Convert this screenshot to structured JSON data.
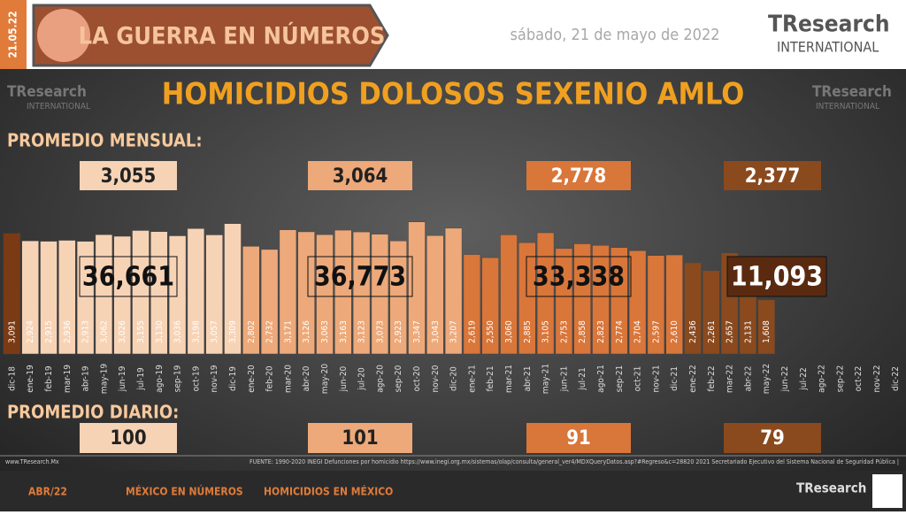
{
  "header": {
    "date_stamp": "21.05.22",
    "section": "LA GUERRA EN NÚMEROS",
    "date": "sábado, 21 de mayo de 2022",
    "logo_name": "TResearch",
    "logo_sub": "INTERNATIONAL"
  },
  "chart_data": {
    "type": "bar",
    "title": "HOMICIDIOS DOLOSOS SEXENIO AMLO",
    "monthly_label": "PROMEDIO MENSUAL:",
    "daily_label": "PROMEDIO DIARIO:",
    "categories": [
      "dic-18",
      "ene-19",
      "feb-19",
      "mar-19",
      "abr-19",
      "may-19",
      "jun-19",
      "jul-19",
      "ago-19",
      "sep-19",
      "oct-19",
      "nov-19",
      "dic-19",
      "ene-20",
      "feb-20",
      "mar-20",
      "abr-20",
      "may-20",
      "jun-20",
      "jul-20",
      "ago-20",
      "sep-20",
      "oct-20",
      "nov-20",
      "dic-20",
      "ene-21",
      "feb-21",
      "mar-21",
      "abr-21",
      "may-21",
      "jun-21",
      "jul-21",
      "ago-21",
      "sep-21",
      "oct-21",
      "nov-21",
      "dic-21",
      "ene-22",
      "feb-22",
      "mar-22",
      "abr-22",
      "may-22",
      "jun-22",
      "jul-22",
      "ago-22",
      "sep-22",
      "oct-22",
      "nov-22",
      "dic-22"
    ],
    "values": [
      3091,
      2924,
      2915,
      2936,
      2913,
      3062,
      3026,
      3155,
      3130,
      3036,
      3198,
      3057,
      3309,
      2802,
      2732,
      3171,
      3126,
      3063,
      3163,
      3123,
      3073,
      2923,
      3347,
      3043,
      3207,
      2619,
      2550,
      3060,
      2885,
      3105,
      2753,
      2858,
      2823,
      2774,
      2704,
      2597,
      2610,
      2436,
      2261,
      2657,
      2131,
      1608,
      null,
      null,
      null,
      null,
      null,
      null,
      null
    ],
    "value_labels": [
      "3,091",
      "2,924",
      "2,915",
      "2,936",
      "2,913",
      "3,062",
      "3,026",
      "3,155",
      "3,130",
      "3,036",
      "3,198",
      "3,057",
      "3,309",
      "2,802",
      "2,732",
      "3,171",
      "3,126",
      "3,063",
      "3,163",
      "3,123",
      "3,073",
      "2,923",
      "3,347",
      "3,043",
      "3,207",
      "2,619",
      "2,550",
      "3,060",
      "2,885",
      "3,105",
      "2,753",
      "2,858",
      "2,823",
      "2,774",
      "2,704",
      "2,597",
      "2,610",
      "2,436",
      "2,261",
      "2,657",
      "2,131",
      "1,608",
      null,
      null,
      null,
      null,
      null,
      null,
      null
    ],
    "colors": [
      "#7a3a14",
      "#f7d3b6",
      "#f7d3b6",
      "#f7d3b6",
      "#f7d3b6",
      "#f7d3b6",
      "#f7d3b6",
      "#f7d3b6",
      "#f7d3b6",
      "#f7d3b6",
      "#f7d3b6",
      "#f7d3b6",
      "#f7d3b6",
      "#eda97a",
      "#eda97a",
      "#eda97a",
      "#eda97a",
      "#eda97a",
      "#eda97a",
      "#eda97a",
      "#eda97a",
      "#eda97a",
      "#eda97a",
      "#eda97a",
      "#eda97a",
      "#d9763a",
      "#d9763a",
      "#d9763a",
      "#d9763a",
      "#d9763a",
      "#d9763a",
      "#d9763a",
      "#d9763a",
      "#d9763a",
      "#d9763a",
      "#d9763a",
      "#d9763a",
      "#8a4a1e",
      "#8a4a1e",
      "#8a4a1e",
      "#8a4a1e",
      "#8a4a1e",
      null,
      null,
      null,
      null,
      null,
      null,
      null
    ],
    "ylim": [
      400,
      3500
    ],
    "summaries": [
      {
        "color": "#f7d3b6",
        "monthly": {
          "value": 3055,
          "label": "3,055"
        },
        "total": {
          "value": 36661,
          "label": "36,661"
        },
        "daily": 100
      },
      {
        "color": "#eda97a",
        "monthly": {
          "value": 3064,
          "label": "3,064"
        },
        "total": {
          "value": 36773,
          "label": "36,773"
        },
        "daily": 101
      },
      {
        "color": "#d9763a",
        "monthly": {
          "value": 2778,
          "label": "2,778"
        },
        "total": {
          "value": 33338,
          "label": "33,338"
        },
        "daily": 91
      },
      {
        "color": "#8a4a1e",
        "monthly": {
          "value": 2377,
          "label": "2,377"
        },
        "total": {
          "value": 11093,
          "label": "11,093"
        },
        "daily": 79
      }
    ]
  },
  "footer": {
    "site": "www.TResearch.Mx",
    "source": "FUENTE: 1990-2020 INEGI Defunciones por homicidio https://www.inegi.org.mx/sistemas/olap/consulta/general_ver4/MDXQueryDatos.asp?#Regreso&c=28820   2021 Secretariado Ejecutivo del Sistema Nacional de Seguridad Pública |",
    "links": [
      "ABR/22",
      "MÉXICO EN NÚMEROS",
      "HOMICIDIOS EN MÉXICO"
    ]
  }
}
